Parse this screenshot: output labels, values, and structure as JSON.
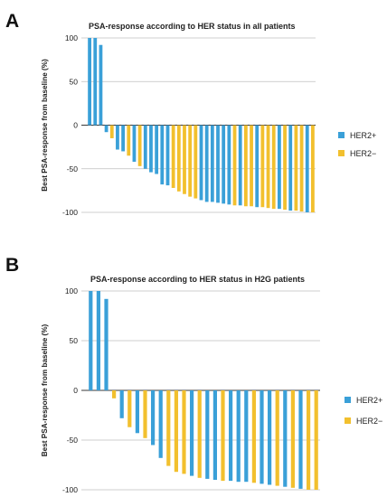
{
  "panels": [
    {
      "letter": "A",
      "chart_data": {
        "type": "bar",
        "title": "PSA-response according to HER status in all patients",
        "ylabel": "Best PSA-response from baseline (%)",
        "xlabel": "",
        "ylim": [
          -100,
          100
        ],
        "yticks": [
          100,
          50,
          0,
          -50,
          -100
        ],
        "grid": true,
        "legend_position": "right",
        "legend": [
          {
            "label": "HER2+",
            "color": "#3aa0d8"
          },
          {
            "label": "HER2−",
            "color": "#f2c02e"
          }
        ],
        "bars": [
          {
            "group": "HER2+",
            "value": 100
          },
          {
            "group": "HER2+",
            "value": 100
          },
          {
            "group": "HER2+",
            "value": 92
          },
          {
            "group": "HER2+",
            "value": -8
          },
          {
            "group": "HER2−",
            "value": -15
          },
          {
            "group": "HER2+",
            "value": -28
          },
          {
            "group": "HER2+",
            "value": -30
          },
          {
            "group": "HER2−",
            "value": -35
          },
          {
            "group": "HER2+",
            "value": -42
          },
          {
            "group": "HER2−",
            "value": -47
          },
          {
            "group": "HER2+",
            "value": -50
          },
          {
            "group": "HER2+",
            "value": -54
          },
          {
            "group": "HER2+",
            "value": -56
          },
          {
            "group": "HER2+",
            "value": -68
          },
          {
            "group": "HER2+",
            "value": -69
          },
          {
            "group": "HER2−",
            "value": -72
          },
          {
            "group": "HER2−",
            "value": -76
          },
          {
            "group": "HER2−",
            "value": -79
          },
          {
            "group": "HER2−",
            "value": -82
          },
          {
            "group": "HER2−",
            "value": -84
          },
          {
            "group": "HER2+",
            "value": -86
          },
          {
            "group": "HER2+",
            "value": -88
          },
          {
            "group": "HER2+",
            "value": -88
          },
          {
            "group": "HER2+",
            "value": -89
          },
          {
            "group": "HER2+",
            "value": -90
          },
          {
            "group": "HER2+",
            "value": -91
          },
          {
            "group": "HER2−",
            "value": -92
          },
          {
            "group": "HER2+",
            "value": -92
          },
          {
            "group": "HER2−",
            "value": -93
          },
          {
            "group": "HER2−",
            "value": -93
          },
          {
            "group": "HER2+",
            "value": -94
          },
          {
            "group": "HER2−",
            "value": -94
          },
          {
            "group": "HER2−",
            "value": -95
          },
          {
            "group": "HER2−",
            "value": -96
          },
          {
            "group": "HER2+",
            "value": -96
          },
          {
            "group": "HER2−",
            "value": -97
          },
          {
            "group": "HER2+",
            "value": -98
          },
          {
            "group": "HER2−",
            "value": -98
          },
          {
            "group": "HER2−",
            "value": -99
          },
          {
            "group": "HER2+",
            "value": -100
          },
          {
            "group": "HER2−",
            "value": -100
          }
        ]
      }
    },
    {
      "letter": "B",
      "chart_data": {
        "type": "bar",
        "title": "PSA-response according to HER status in H2G patients",
        "ylabel": "Best PSA-response from baseline (%)",
        "xlabel": "",
        "ylim": [
          -100,
          100
        ],
        "yticks": [
          100,
          50,
          0,
          -50,
          -100
        ],
        "grid": true,
        "legend_position": "right",
        "legend": [
          {
            "label": "HER2+",
            "color": "#3aa0d8"
          },
          {
            "label": "HER2−",
            "color": "#f2c02e"
          }
        ],
        "bars": [
          {
            "group": "HER2+",
            "value": 100
          },
          {
            "group": "HER2+",
            "value": 100
          },
          {
            "group": "HER2+",
            "value": 92
          },
          {
            "group": "HER2−",
            "value": -8
          },
          {
            "group": "HER2+",
            "value": -28
          },
          {
            "group": "HER2−",
            "value": -37
          },
          {
            "group": "HER2+",
            "value": -43
          },
          {
            "group": "HER2−",
            "value": -48
          },
          {
            "group": "HER2+",
            "value": -55
          },
          {
            "group": "HER2+",
            "value": -68
          },
          {
            "group": "HER2−",
            "value": -76
          },
          {
            "group": "HER2−",
            "value": -82
          },
          {
            "group": "HER2−",
            "value": -84
          },
          {
            "group": "HER2+",
            "value": -86
          },
          {
            "group": "HER2−",
            "value": -88
          },
          {
            "group": "HER2+",
            "value": -89
          },
          {
            "group": "HER2+",
            "value": -90
          },
          {
            "group": "HER2−",
            "value": -91
          },
          {
            "group": "HER2+",
            "value": -91
          },
          {
            "group": "HER2+",
            "value": -92
          },
          {
            "group": "HER2+",
            "value": -92
          },
          {
            "group": "HER2−",
            "value": -93
          },
          {
            "group": "HER2+",
            "value": -94
          },
          {
            "group": "HER2+",
            "value": -95
          },
          {
            "group": "HER2−",
            "value": -96
          },
          {
            "group": "HER2+",
            "value": -97
          },
          {
            "group": "HER2−",
            "value": -98
          },
          {
            "group": "HER2+",
            "value": -99
          },
          {
            "group": "HER2−",
            "value": -100
          },
          {
            "group": "HER2−",
            "value": -100
          }
        ]
      }
    }
  ]
}
